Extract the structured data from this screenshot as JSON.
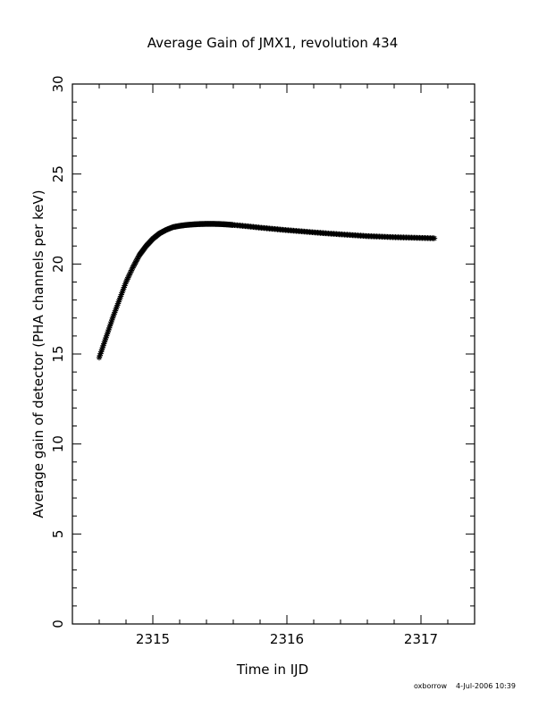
{
  "chart_data": {
    "type": "scatter",
    "title": "Average Gain of JMX1, revolution 434",
    "xlabel": "Time in IJD",
    "ylabel": "Average gain of detector (PHA channels per keV)",
    "xlim": [
      2314.4,
      2317.4
    ],
    "ylim": [
      0,
      30
    ],
    "xticks": [
      2315,
      2316,
      2317
    ],
    "yticks": [
      0,
      5,
      10,
      15,
      20,
      25,
      30
    ],
    "x_tick_labels": [
      "2315",
      "2316",
      "2317"
    ],
    "y_tick_labels": [
      "0",
      "5",
      "10",
      "15",
      "20",
      "25",
      "30"
    ],
    "marker": "asterisk",
    "grid": false,
    "series": [
      {
        "color": "#000000",
        "x": [
          2314.6,
          2314.65,
          2314.7,
          2314.75,
          2314.8,
          2314.85,
          2314.9,
          2314.95,
          2315.0,
          2315.05,
          2315.1,
          2315.15,
          2315.2,
          2315.25,
          2315.3,
          2315.35,
          2315.4,
          2315.45,
          2315.5,
          2315.55,
          2315.6,
          2315.7,
          2315.8,
          2315.9,
          2316.0,
          2316.1,
          2316.2,
          2316.3,
          2316.4,
          2316.5,
          2316.6,
          2316.7,
          2316.8,
          2316.9,
          2317.0,
          2317.1
        ],
        "y": [
          14.8,
          15.9,
          17.0,
          18.0,
          19.0,
          19.8,
          20.5,
          21.0,
          21.4,
          21.7,
          21.9,
          22.05,
          22.12,
          22.17,
          22.2,
          22.22,
          22.23,
          22.23,
          22.22,
          22.2,
          22.17,
          22.1,
          22.02,
          21.95,
          21.88,
          21.82,
          21.76,
          21.7,
          21.65,
          21.6,
          21.55,
          21.52,
          21.49,
          21.47,
          21.45,
          21.43
        ]
      }
    ]
  },
  "footer": {
    "user": "oxborrow",
    "timestamp": "4-Jul-2006 10:39"
  }
}
